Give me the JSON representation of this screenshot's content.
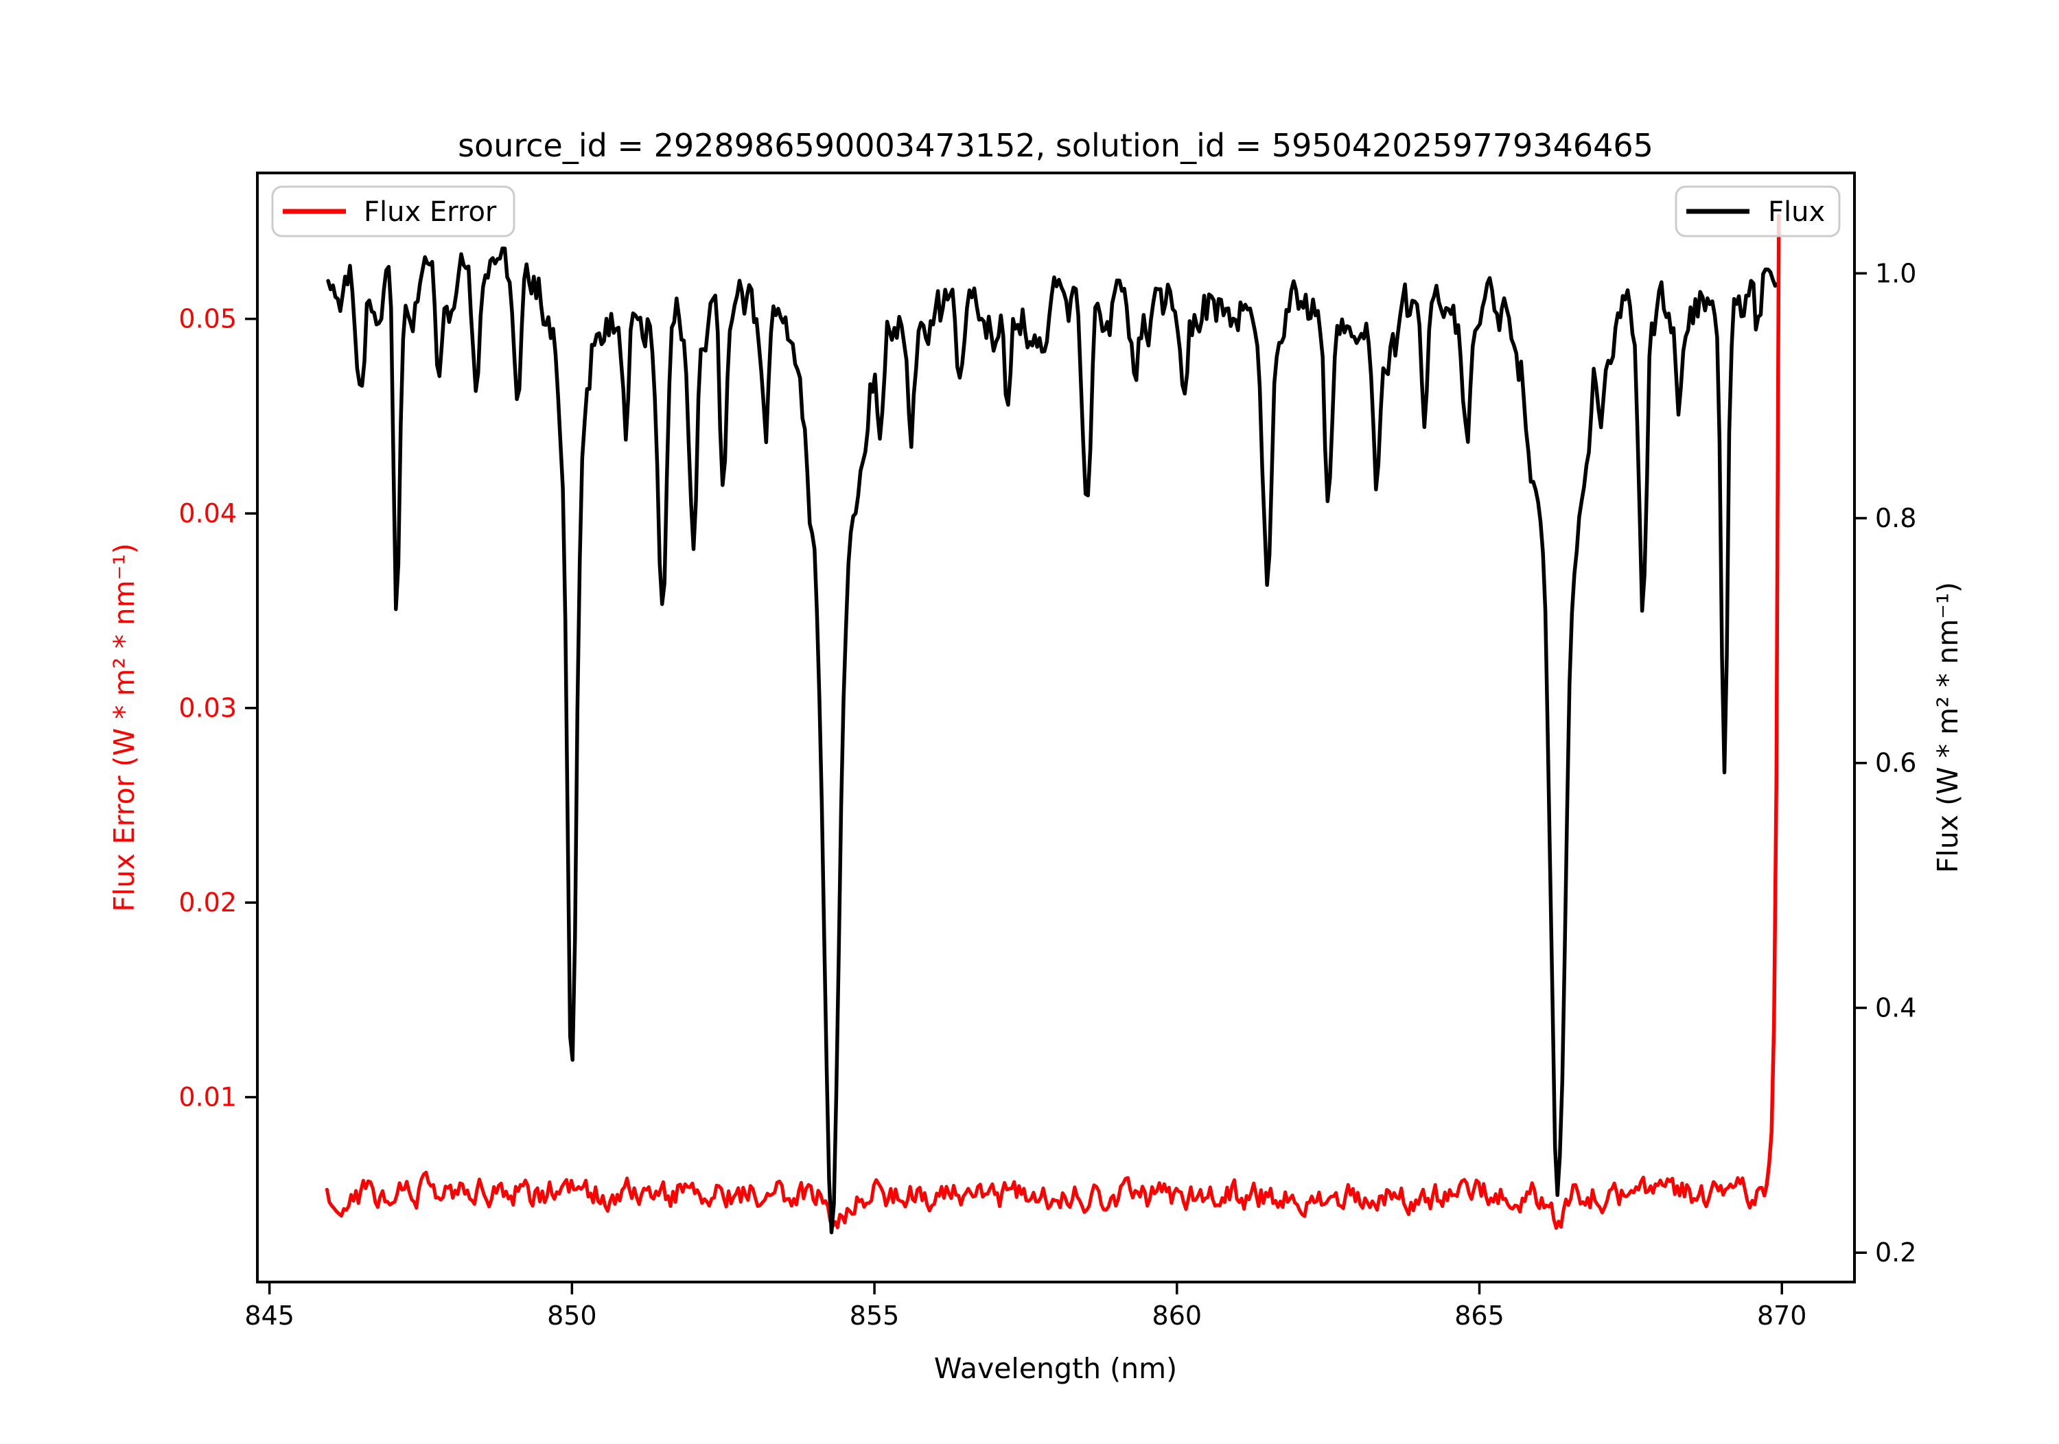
{
  "chart_data": {
    "type": "line",
    "title": "source_id = 2928986590003473152, solution_id = 5950420259779346465",
    "xlabel": "Wavelength (nm)",
    "ylabel_left": "Flux Error (W * m² * nm⁻¹)",
    "ylabel_right": "Flux (W * m² * nm⁻¹)",
    "x_ticks": [
      845,
      850,
      855,
      860,
      865,
      870
    ],
    "left_y_ticks": [
      0.01,
      0.02,
      0.03,
      0.04,
      0.05
    ],
    "right_y_ticks": [
      0.2,
      0.4,
      0.6,
      0.8,
      1.0
    ],
    "xlim": [
      844.8,
      871.2
    ],
    "ylim_left": [
      0.0005,
      0.0575
    ],
    "ylim_right": [
      0.176,
      1.082
    ],
    "grid": false,
    "noise_seed": 20,
    "colors": {
      "flux": "#000000",
      "flux_error": "#ff0000",
      "axis": "#000000",
      "legend_border": "#cccccc",
      "left_tick_label": "#ff0000",
      "right_tick_label": "#000000"
    },
    "legends": [
      {
        "label": "Flux Error",
        "position": "upper left",
        "line_color": "#ff0000"
      },
      {
        "label": "Flux",
        "position": "upper right",
        "line_color": "#000000"
      }
    ],
    "series_spec": {
      "flux": {
        "name": "Flux",
        "axis": "right",
        "color": "#000000",
        "range_nm": [
          845.97,
          869.93
        ],
        "continuum_level": 0.97,
        "continuum_max": 1.04,
        "noise_std": 0.016,
        "absorption_lines": [
          {
            "center_nm": 846.5,
            "min_flux": 0.9,
            "width_nm": 0.06
          },
          {
            "center_nm": 847.1,
            "min_flux": 0.7,
            "width_nm": 0.05
          },
          {
            "center_nm": 847.8,
            "min_flux": 0.91,
            "width_nm": 0.05
          },
          {
            "center_nm": 848.4,
            "min_flux": 0.89,
            "width_nm": 0.05
          },
          {
            "center_nm": 849.1,
            "min_flux": 0.9,
            "width_nm": 0.05
          },
          {
            "center_nm": 850.0,
            "min_flux": 0.33,
            "width_nm": 0.07
          },
          {
            "center_nm": 850.9,
            "min_flux": 0.88,
            "width_nm": 0.05
          },
          {
            "center_nm": 851.5,
            "min_flux": 0.72,
            "width_nm": 0.07
          },
          {
            "center_nm": 852.0,
            "min_flux": 0.79,
            "width_nm": 0.06
          },
          {
            "center_nm": 852.5,
            "min_flux": 0.82,
            "width_nm": 0.05
          },
          {
            "center_nm": 853.2,
            "min_flux": 0.89,
            "width_nm": 0.05
          },
          {
            "center_nm": 854.3,
            "min_flux": 0.205,
            "width_nm": 0.1
          },
          {
            "center_nm": 855.1,
            "min_flux": 0.87,
            "width_nm": 0.05
          },
          {
            "center_nm": 855.6,
            "min_flux": 0.89,
            "width_nm": 0.05
          },
          {
            "center_nm": 856.4,
            "min_flux": 0.91,
            "width_nm": 0.05
          },
          {
            "center_nm": 857.2,
            "min_flux": 0.9,
            "width_nm": 0.05
          },
          {
            "center_nm": 858.5,
            "min_flux": 0.8,
            "width_nm": 0.07
          },
          {
            "center_nm": 859.3,
            "min_flux": 0.91,
            "width_nm": 0.05
          },
          {
            "center_nm": 860.1,
            "min_flux": 0.9,
            "width_nm": 0.05
          },
          {
            "center_nm": 861.5,
            "min_flux": 0.76,
            "width_nm": 0.07
          },
          {
            "center_nm": 862.5,
            "min_flux": 0.82,
            "width_nm": 0.06
          },
          {
            "center_nm": 863.3,
            "min_flux": 0.87,
            "width_nm": 0.05
          },
          {
            "center_nm": 864.1,
            "min_flux": 0.88,
            "width_nm": 0.05
          },
          {
            "center_nm": 864.8,
            "min_flux": 0.89,
            "width_nm": 0.05
          },
          {
            "center_nm": 866.3,
            "min_flux": 0.23,
            "width_nm": 0.1
          },
          {
            "center_nm": 867.0,
            "min_flux": 0.91,
            "width_nm": 0.04
          },
          {
            "center_nm": 867.7,
            "min_flux": 0.73,
            "width_nm": 0.06
          },
          {
            "center_nm": 868.3,
            "min_flux": 0.89,
            "width_nm": 0.04
          },
          {
            "center_nm": 869.05,
            "min_flux": 0.57,
            "width_nm": 0.05
          },
          {
            "center_nm": 869.6,
            "min_flux": 0.93,
            "width_nm": 0.04
          }
        ],
        "deep_line_wings": [
          {
            "center_nm": 850.0,
            "depth_fraction": 0.22,
            "width_nm": 0.2
          },
          {
            "center_nm": 854.3,
            "depth_fraction": 0.4,
            "width_nm": 0.32
          },
          {
            "center_nm": 866.3,
            "depth_fraction": 0.38,
            "width_nm": 0.3
          }
        ]
      },
      "flux_error": {
        "name": "Flux Error",
        "axis": "left",
        "color": "#ff0000",
        "range_nm": [
          845.95,
          869.95
        ],
        "baseline": 0.005,
        "noise_std": 0.00042,
        "dips": [
          {
            "center_nm": 854.35,
            "depth": 0.0016,
            "width_nm": 0.14
          },
          {
            "center_nm": 866.3,
            "depth": 0.0009,
            "width_nm": 0.14
          }
        ],
        "end_spike": {
          "center_nm": 869.9,
          "peak_value": 0.0553,
          "tau_nm": 0.045
        }
      }
    }
  }
}
